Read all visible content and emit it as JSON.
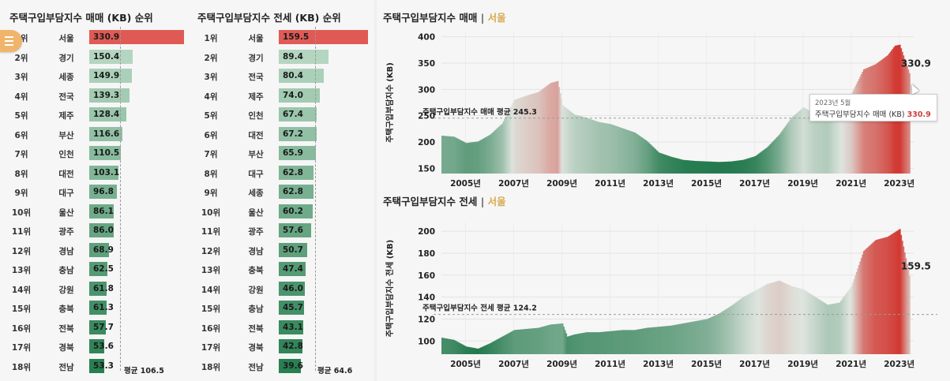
{
  "rank_sale": {
    "title": "주택구입부담지수 매매 (KB) 순위",
    "avg_label": "평균 106.5",
    "avg": 106.5,
    "max": 330.9,
    "rows": [
      {
        "rank": "1위",
        "region": "서울",
        "value": "330.9",
        "v": 330.9
      },
      {
        "rank": "2위",
        "region": "경기",
        "value": "150.4",
        "v": 150.4
      },
      {
        "rank": "3위",
        "region": "세종",
        "value": "149.9",
        "v": 149.9
      },
      {
        "rank": "4위",
        "region": "전국",
        "value": "139.3",
        "v": 139.3
      },
      {
        "rank": "5위",
        "region": "제주",
        "value": "128.4",
        "v": 128.4
      },
      {
        "rank": "6위",
        "region": "부산",
        "value": "116.6",
        "v": 116.6
      },
      {
        "rank": "7위",
        "region": "인천",
        "value": "110.5",
        "v": 110.5
      },
      {
        "rank": "8위",
        "region": "대전",
        "value": "103.1",
        "v": 103.1
      },
      {
        "rank": "9위",
        "region": "대구",
        "value": "96.8",
        "v": 96.8
      },
      {
        "rank": "10위",
        "region": "울산",
        "value": "86.1",
        "v": 86.1
      },
      {
        "rank": "11위",
        "region": "광주",
        "value": "86.0",
        "v": 86.0
      },
      {
        "rank": "12위",
        "region": "경남",
        "value": "68.9",
        "v": 68.9
      },
      {
        "rank": "13위",
        "region": "충남",
        "value": "62.5",
        "v": 62.5
      },
      {
        "rank": "14위",
        "region": "강원",
        "value": "61.8",
        "v": 61.8
      },
      {
        "rank": "15위",
        "region": "충북",
        "value": "61.3",
        "v": 61.3
      },
      {
        "rank": "16위",
        "region": "전북",
        "value": "57.7",
        "v": 57.7
      },
      {
        "rank": "17위",
        "region": "경북",
        "value": "53.6",
        "v": 53.6
      },
      {
        "rank": "18위",
        "region": "전남",
        "value": "53.3",
        "v": 53.3
      }
    ]
  },
  "rank_jeonse": {
    "title": "주택구입부담지수 전세 (KB) 순위",
    "avg_label": "평균 64.6",
    "avg": 64.6,
    "max": 159.5,
    "rows": [
      {
        "rank": "1위",
        "region": "서울",
        "value": "159.5",
        "v": 159.5
      },
      {
        "rank": "2위",
        "region": "경기",
        "value": "89.4",
        "v": 89.4
      },
      {
        "rank": "3위",
        "region": "전국",
        "value": "80.4",
        "v": 80.4
      },
      {
        "rank": "4위",
        "region": "제주",
        "value": "74.0",
        "v": 74.0
      },
      {
        "rank": "5위",
        "region": "인천",
        "value": "67.4",
        "v": 67.4
      },
      {
        "rank": "6위",
        "region": "대전",
        "value": "67.2",
        "v": 67.2
      },
      {
        "rank": "7위",
        "region": "부산",
        "value": "65.9",
        "v": 65.9
      },
      {
        "rank": "8위",
        "region": "대구",
        "value": "62.8",
        "v": 62.8
      },
      {
        "rank": "9위",
        "region": "세종",
        "value": "62.8",
        "v": 62.8
      },
      {
        "rank": "10위",
        "region": "울산",
        "value": "60.2",
        "v": 60.2
      },
      {
        "rank": "11위",
        "region": "광주",
        "value": "57.6",
        "v": 57.6
      },
      {
        "rank": "12위",
        "region": "경남",
        "value": "50.7",
        "v": 50.7
      },
      {
        "rank": "13위",
        "region": "충북",
        "value": "47.4",
        "v": 47.4
      },
      {
        "rank": "14위",
        "region": "강원",
        "value": "46.0",
        "v": 46.0
      },
      {
        "rank": "15위",
        "region": "충남",
        "value": "45.7",
        "v": 45.7
      },
      {
        "rank": "16위",
        "region": "전북",
        "value": "43.1",
        "v": 43.1
      },
      {
        "rank": "17위",
        "region": "경북",
        "value": "42.8",
        "v": 42.8
      },
      {
        "rank": "18위",
        "region": "전남",
        "value": "39.6",
        "v": 39.6
      }
    ]
  },
  "sale_chart": {
    "title_main": "주택구입부담지수 매매",
    "sep": "|",
    "title_region": "서울",
    "ylabel": "주택구입부담지수 (KB)",
    "avg": 245.3,
    "avg_label": "주택구입부담지수 매매 평균 245.3",
    "end_label": "330.9",
    "tooltip_date": "2023년 5월",
    "tooltip_name": "주택구입부담지수 매매 (KB)",
    "tooltip_value": "330.9",
    "ylim": [
      140,
      410
    ],
    "yticks": [
      150,
      200,
      250,
      300,
      350,
      400
    ],
    "xticks": [
      "2005년",
      "2007년",
      "2009년",
      "2011년",
      "2013년",
      "2015년",
      "2017년",
      "2019년",
      "2021년",
      "2023년"
    ]
  },
  "jeonse_chart": {
    "title_main": "주택구입부담지수 전세",
    "sep": "|",
    "title_region": "서울",
    "ylabel": "주택구입부담지수 전세 (KB)",
    "avg": 124.2,
    "avg_label": "주택구입부담지수 전세 평균 124.2",
    "end_label": "159.5",
    "ylim": [
      88,
      208
    ],
    "yticks": [
      100,
      120,
      140,
      160,
      180,
      200
    ],
    "xticks": [
      "2005년",
      "2007년",
      "2009년",
      "2011년",
      "2013년",
      "2015년",
      "2017년",
      "2019년",
      "2021년",
      "2023년"
    ]
  },
  "chart_data": [
    {
      "type": "bar",
      "title": "주택구입부담지수 매매 (KB) 순위",
      "categories": [
        "서울",
        "경기",
        "세종",
        "전국",
        "제주",
        "부산",
        "인천",
        "대전",
        "대구",
        "울산",
        "광주",
        "경남",
        "충남",
        "강원",
        "충북",
        "전북",
        "경북",
        "전남"
      ],
      "values": [
        330.9,
        150.4,
        149.9,
        139.3,
        128.4,
        116.6,
        110.5,
        103.1,
        96.8,
        86.1,
        86.0,
        68.9,
        62.5,
        61.8,
        61.3,
        57.7,
        53.6,
        53.3
      ],
      "average": 106.5
    },
    {
      "type": "bar",
      "title": "주택구입부담지수 전세 (KB) 순위",
      "categories": [
        "서울",
        "경기",
        "전국",
        "제주",
        "인천",
        "대전",
        "부산",
        "대구",
        "세종",
        "울산",
        "광주",
        "경남",
        "충북",
        "강원",
        "충남",
        "전북",
        "경북",
        "전남"
      ],
      "values": [
        159.5,
        89.4,
        80.4,
        74.0,
        67.4,
        67.2,
        65.9,
        62.8,
        62.8,
        60.2,
        57.6,
        50.7,
        47.4,
        46.0,
        45.7,
        43.1,
        42.8,
        39.6
      ],
      "average": 64.6
    },
    {
      "type": "area",
      "title": "주택구입부담지수 매매 | 서울",
      "ylabel": "주택구입부담지수 (KB)",
      "ylim": [
        140,
        410
      ],
      "average": 245.3,
      "x": [
        2004.0,
        2004.5,
        2005.0,
        2005.5,
        2006.0,
        2006.5,
        2007.0,
        2007.5,
        2008.0,
        2008.5,
        2008.8,
        2009.0,
        2009.5,
        2010.0,
        2010.5,
        2011.0,
        2011.5,
        2012.0,
        2012.5,
        2013.0,
        2013.5,
        2014.0,
        2014.5,
        2015.0,
        2015.5,
        2016.0,
        2016.5,
        2017.0,
        2017.5,
        2018.0,
        2018.5,
        2019.0,
        2019.5,
        2020.0,
        2020.5,
        2021.0,
        2021.5,
        2022.0,
        2022.5,
        2022.8,
        2023.0,
        2023.4
      ],
      "values": [
        212,
        210,
        198,
        201,
        214,
        235,
        280,
        288,
        295,
        312,
        316,
        270,
        252,
        246,
        238,
        234,
        226,
        218,
        202,
        180,
        172,
        166,
        164,
        163,
        162,
        163,
        166,
        173,
        190,
        214,
        246,
        266,
        252,
        247,
        270,
        292,
        338,
        348,
        365,
        383,
        385,
        330.9
      ]
    },
    {
      "type": "area",
      "title": "주택구입부담지수 전세 | 서울",
      "ylabel": "주택구입부담지수 전세 (KB)",
      "ylim": [
        88,
        208
      ],
      "average": 124.2,
      "x": [
        2004.0,
        2004.5,
        2005.0,
        2005.5,
        2006.0,
        2006.5,
        2007.0,
        2007.5,
        2008.0,
        2008.5,
        2009.0,
        2009.2,
        2009.5,
        2010.0,
        2010.5,
        2011.0,
        2011.5,
        2012.0,
        2012.5,
        2013.0,
        2013.5,
        2014.0,
        2014.5,
        2015.0,
        2015.5,
        2016.0,
        2016.5,
        2017.0,
        2017.5,
        2018.0,
        2018.5,
        2019.0,
        2019.5,
        2020.0,
        2020.5,
        2021.0,
        2021.5,
        2022.0,
        2022.5,
        2023.0,
        2023.4
      ],
      "values": [
        103,
        101,
        95,
        93,
        98,
        104,
        110,
        111,
        112,
        115,
        116,
        104,
        106,
        108,
        108,
        109,
        110,
        110,
        112,
        113,
        114,
        116,
        118,
        120,
        125,
        132,
        140,
        146,
        152,
        155,
        150,
        147,
        140,
        133,
        135,
        150,
        182,
        192,
        195,
        202,
        159.5
      ]
    }
  ]
}
